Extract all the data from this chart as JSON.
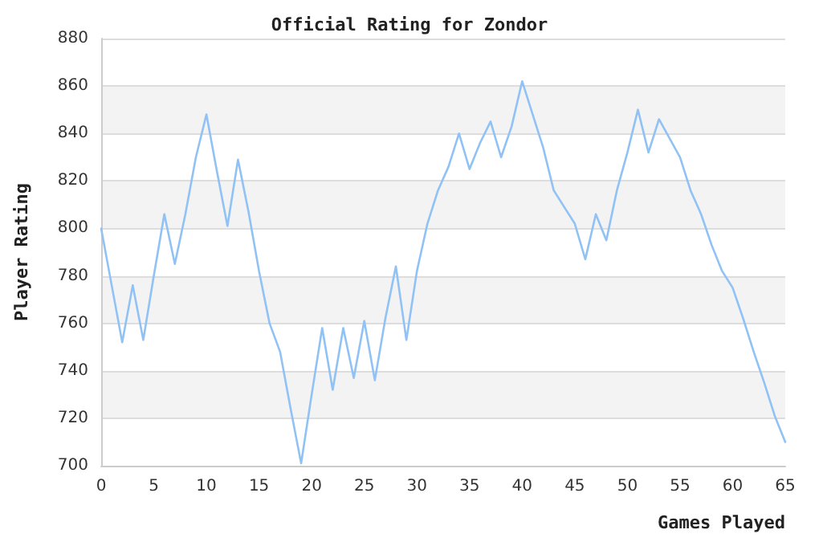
{
  "chart_data": {
    "type": "line",
    "title": "Official Rating for Zondor",
    "xlabel": "Games Played",
    "ylabel": "Player Rating",
    "x": [
      0,
      1,
      2,
      3,
      4,
      5,
      6,
      7,
      8,
      9,
      10,
      11,
      12,
      13,
      14,
      15,
      16,
      17,
      18,
      19,
      20,
      21,
      22,
      23,
      24,
      25,
      26,
      27,
      28,
      29,
      30,
      31,
      32,
      33,
      34,
      35,
      36,
      37,
      38,
      39,
      40,
      41,
      42,
      43,
      44,
      45,
      46,
      47,
      48,
      49,
      50,
      51,
      52,
      53,
      54,
      55,
      56,
      57,
      58,
      59,
      60,
      61,
      62,
      63,
      64,
      65
    ],
    "series": [
      {
        "color": "#90c2f5",
        "values": [
          800,
          776,
          752,
          776,
          753,
          780,
          806,
          785,
          806,
          830,
          848,
          824,
          801,
          829,
          807,
          782,
          760,
          748,
          724,
          701,
          730,
          758,
          732,
          758,
          737,
          761,
          736,
          762,
          784,
          753,
          782,
          802,
          816,
          826,
          840,
          825,
          836,
          845,
          830,
          843,
          862,
          848,
          834,
          816,
          809,
          802,
          787,
          806,
          795,
          816,
          832,
          850,
          832,
          846,
          838,
          830,
          816,
          806,
          793,
          782,
          775,
          762,
          748,
          735,
          721,
          710
        ]
      }
    ],
    "xlim": [
      0,
      65
    ],
    "xticks": [
      0,
      5,
      10,
      15,
      20,
      25,
      30,
      35,
      40,
      45,
      50,
      55,
      60,
      65
    ],
    "ylim": [
      700,
      880
    ],
    "yticks": [
      700,
      720,
      740,
      760,
      780,
      800,
      820,
      840,
      860,
      880
    ],
    "grid": "y",
    "marker": "none",
    "line_style": "solid"
  }
}
